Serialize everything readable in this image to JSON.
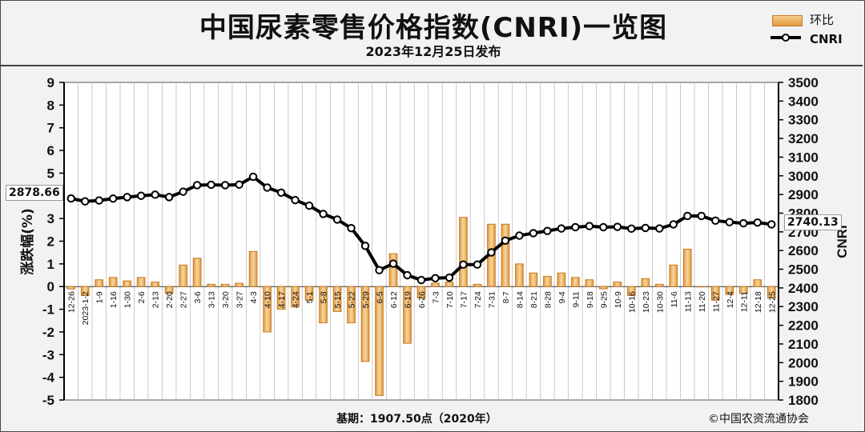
{
  "header": {
    "title": "中国尿素零售价格指数(CNRI)一览图",
    "subtitle": "2023年12月25日发布"
  },
  "legend": {
    "bar_label": "环比",
    "line_label": "CNRI"
  },
  "footer": {
    "base": "基期：1907.50点（2020年）",
    "copyright": "©中国农资流通协会"
  },
  "callouts": {
    "start": "2878.66",
    "end": "2740.13"
  },
  "colors": {
    "bar_fill_top": "#f5cc8c",
    "bar_fill_bottom": "#e09a3c",
    "bar_stroke": "#c87820",
    "line": "#000000",
    "marker_fill": "#ffffff",
    "grid": "#999999",
    "plot_bg": "#ffffff"
  },
  "chart_data": {
    "type": "bar+line",
    "categories": [
      "12-26",
      "2023-1-2",
      "1-9",
      "1-16",
      "1-30",
      "2-6",
      "2-13",
      "2-20",
      "2-27",
      "3-6",
      "3-13",
      "3-20",
      "3-27",
      "4-3",
      "4-10",
      "4-17",
      "4-24",
      "5-1",
      "5-8",
      "5-15",
      "5-22",
      "5-29",
      "6-5",
      "6-12",
      "6-19",
      "6-26",
      "7-3",
      "7-10",
      "7-17",
      "7-24",
      "7-31",
      "8-7",
      "8-14",
      "8-21",
      "8-28",
      "9-4",
      "9-11",
      "9-18",
      "9-25",
      "10-9",
      "10-16",
      "10-23",
      "10-30",
      "11-6",
      "11-13",
      "11-20",
      "11-27",
      "12-4",
      "12-11",
      "12-18",
      "12-25"
    ],
    "series": [
      {
        "name": "环比",
        "axis": "left",
        "values": [
          -0.1,
          -0.4,
          0.3,
          0.4,
          0.25,
          0.4,
          0.2,
          -0.3,
          0.95,
          1.25,
          0.1,
          0.1,
          0.15,
          1.55,
          -2.0,
          -1.0,
          -0.9,
          -0.6,
          -1.6,
          -1.1,
          -1.6,
          -3.3,
          -4.8,
          1.45,
          -2.5,
          -0.5,
          0.15,
          0.2,
          3.05,
          0.1,
          2.75,
          2.75,
          1.0,
          0.6,
          0.45,
          0.6,
          0.4,
          0.3,
          -0.1,
          0.2,
          -0.4,
          0.35,
          0.1,
          0.95,
          1.65,
          0.0,
          -0.6,
          -0.35,
          -0.3,
          0.3,
          -0.5
        ]
      },
      {
        "name": "CNRI",
        "axis": "right",
        "values": [
          2878.66,
          2863,
          2868,
          2878,
          2886,
          2893,
          2899,
          2886,
          2915,
          2950,
          2952,
          2950,
          2953,
          2995,
          2937,
          2910,
          2870,
          2840,
          2796,
          2766,
          2720,
          2625,
          2495,
          2530,
          2468,
          2442,
          2452,
          2455,
          2525,
          2525,
          2590,
          2653,
          2680,
          2693,
          2705,
          2718,
          2725,
          2731,
          2725,
          2727,
          2717,
          2721,
          2718,
          2740,
          2785,
          2785,
          2760,
          2752,
          2746,
          2750,
          2740.13
        ]
      }
    ],
    "y_left": {
      "label": "涨跌幅(%)",
      "range": [
        -5,
        9
      ],
      "ticks": [
        9,
        8,
        7,
        6,
        5,
        4,
        3,
        2,
        1,
        0,
        -1,
        -2,
        -3,
        -4,
        -5
      ]
    },
    "y_right": {
      "label": "CNRI",
      "range": [
        1800,
        3500
      ],
      "ticks": [
        3500,
        3400,
        3300,
        3200,
        3100,
        3000,
        2900,
        2800,
        2700,
        2600,
        2500,
        2400,
        2300,
        2200,
        2100,
        2000,
        1900,
        1800
      ]
    },
    "grid": "vertical",
    "legend_position": "top-right"
  }
}
